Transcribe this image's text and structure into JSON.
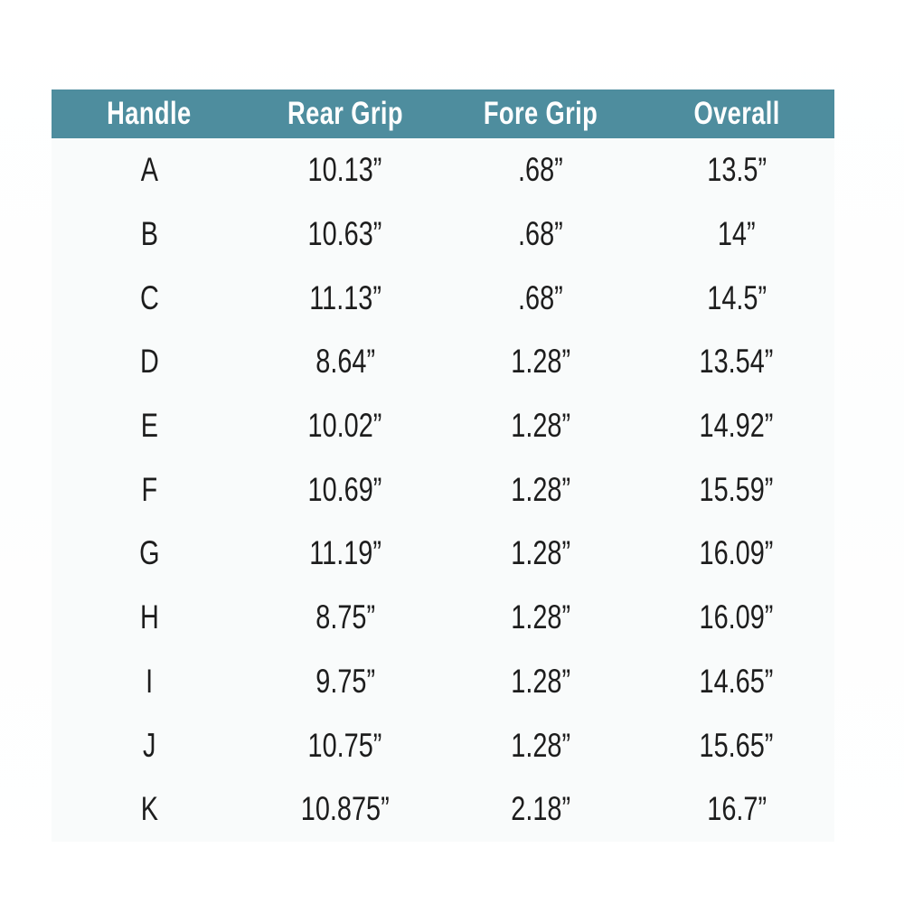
{
  "colors": {
    "header_bg": "#4e8d9e",
    "header_text": "#ffffff",
    "body_text": "#1d1d1d",
    "body_bg": "#f9fbfb",
    "page_bg": "#ffffff"
  },
  "chart_data": {
    "type": "table",
    "columns": [
      "Handle",
      "Rear Grip",
      "Fore Grip",
      "Overall"
    ],
    "rows": [
      [
        "A",
        "10.13”",
        ".68”",
        "13.5”"
      ],
      [
        "B",
        "10.63”",
        ".68”",
        "14”"
      ],
      [
        "C",
        "11.13”",
        ".68”",
        "14.5”"
      ],
      [
        "D",
        "8.64”",
        "1.28”",
        "13.54”"
      ],
      [
        "E",
        "10.02”",
        "1.28”",
        "14.92”"
      ],
      [
        "F",
        "10.69”",
        "1.28”",
        "15.59”"
      ],
      [
        "G",
        "11.19”",
        "1.28”",
        "16.09”"
      ],
      [
        "H",
        "8.75”",
        "1.28”",
        "16.09”"
      ],
      [
        "I",
        "9.75”",
        "1.28”",
        "14.65”"
      ],
      [
        "J",
        "10.75”",
        "1.28”",
        "15.65”"
      ],
      [
        "K",
        "10.875”",
        "2.18”",
        "16.7”"
      ]
    ]
  }
}
